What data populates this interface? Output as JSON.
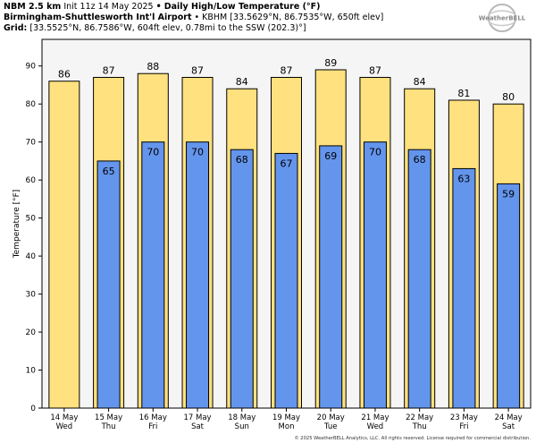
{
  "header": {
    "line1_bold": "NBM 2.5 km",
    "line1_init": "Init 11z 14 May 2025",
    "line1_sep": "•",
    "line1_title": "Daily High/Low Temperature (°F)",
    "line2_bold": "Birmingham-Shuttlesworth Int'l Airport",
    "line2_sep": "•",
    "line2_rest": "KBHM [33.5629°N, 86.7535°W, 650ft elev]",
    "line3_bold": "Grid:",
    "line3_rest": "[33.5525°N, 86.7586°W, 604ft elev, 0.78mi to the SSW (202.3)°]"
  },
  "logo": {
    "text": "WeatherBELL"
  },
  "copyright": "© 2025 WeatherBELL Analytics, LLC. All rights reserved. License required for commercial distribution.",
  "colors": {
    "high": "#FFE17F",
    "low": "#6495ED",
    "plot_bg": "#F6F5F5",
    "edge": "#000000"
  },
  "chart_data": {
    "type": "bar",
    "ylabel": "Temperature [°F]",
    "ylim": [
      0,
      97
    ],
    "yticks": [
      0,
      10,
      20,
      30,
      40,
      50,
      60,
      70,
      80,
      90
    ],
    "grid": false,
    "categories": [
      [
        "14 May",
        "Wed"
      ],
      [
        "15 May",
        "Thu"
      ],
      [
        "16 May",
        "Fri"
      ],
      [
        "17 May",
        "Sat"
      ],
      [
        "18 May",
        "Sun"
      ],
      [
        "19 May",
        "Mon"
      ],
      [
        "20 May",
        "Tue"
      ],
      [
        "21 May",
        "Wed"
      ],
      [
        "22 May",
        "Thu"
      ],
      [
        "23 May",
        "Fri"
      ],
      [
        "24 May",
        "Sat"
      ]
    ],
    "series": [
      {
        "values": [
          86,
          87,
          88,
          87,
          84,
          87,
          89,
          87,
          84,
          81,
          80
        ],
        "color": "#FFE17F"
      },
      {
        "values": [
          null,
          65,
          70,
          70,
          68,
          67,
          69,
          70,
          68,
          63,
          59
        ],
        "color": "#6495ED"
      }
    ]
  }
}
